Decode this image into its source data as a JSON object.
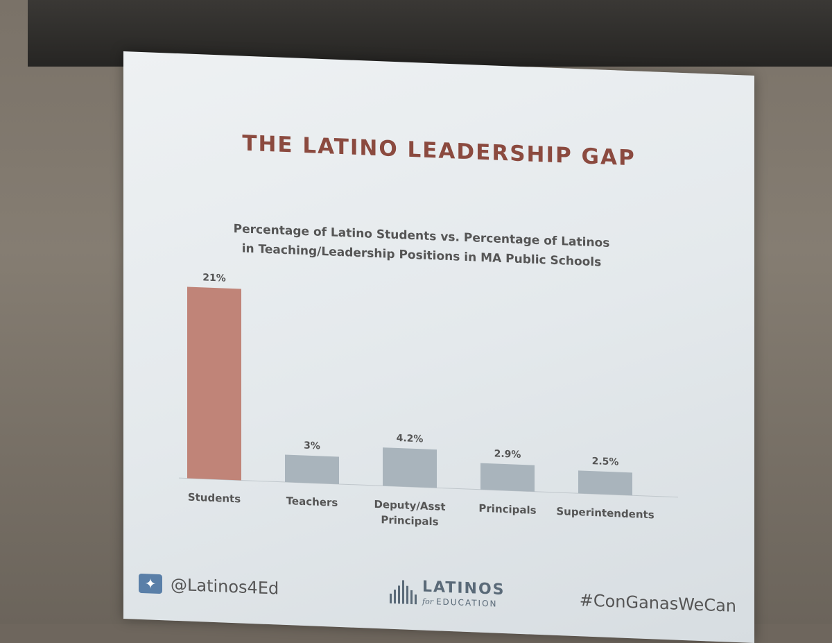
{
  "slide": {
    "title": "THE LATINO LEADERSHIP GAP"
  },
  "chart_data": {
    "type": "bar",
    "title": "Percentage of Latino Students vs. Percentage of Latinos in Teaching/Leadership Positions in MA Public Schools",
    "title_lines": [
      "Percentage of Latino Students vs. Percentage of Latinos",
      "in Teaching/Leadership Positions in MA Public Schools"
    ],
    "categories": [
      "Students",
      "Teachers",
      "Deputy/Asst Principals",
      "Principals",
      "Superintendents"
    ],
    "category_lines": [
      [
        "Students"
      ],
      [
        "Teachers"
      ],
      [
        "Deputy/Asst",
        "Principals"
      ],
      [
        "Principals"
      ],
      [
        "Superintendents"
      ]
    ],
    "values": [
      21,
      3,
      4.2,
      2.9,
      2.5
    ],
    "data_labels": [
      "21%",
      "3%",
      "4.2%",
      "2.9%",
      "2.5%"
    ],
    "ylim": [
      0,
      21
    ],
    "colors": [
      "#c08478",
      "#a9b4bc",
      "#a9b4bc",
      "#a9b4bc",
      "#a9b4bc"
    ],
    "grid": false,
    "legend": "none"
  },
  "footer": {
    "twitter_handle": "@Latinos4Ed",
    "twitter_icon": "twitter-bird-icon",
    "logo_main": "LATINOS",
    "logo_for": "for",
    "logo_sub": "EDUCATION",
    "hashtag": "#ConGanasWeCan"
  }
}
